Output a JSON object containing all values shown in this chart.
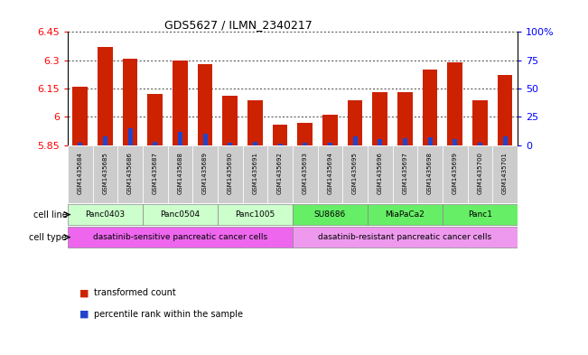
{
  "title": "GDS5627 / ILMN_2340217",
  "samples": [
    "GSM1435684",
    "GSM1435685",
    "GSM1435686",
    "GSM1435687",
    "GSM1435688",
    "GSM1435689",
    "GSM1435690",
    "GSM1435691",
    "GSM1435692",
    "GSM1435693",
    "GSM1435694",
    "GSM1435695",
    "GSM1435696",
    "GSM1435697",
    "GSM1435698",
    "GSM1435699",
    "GSM1435700",
    "GSM1435701"
  ],
  "transformed_count": [
    6.16,
    6.37,
    6.31,
    6.12,
    6.3,
    6.28,
    6.11,
    6.09,
    5.96,
    5.97,
    6.01,
    6.09,
    6.13,
    6.13,
    6.25,
    6.29,
    6.09,
    6.22
  ],
  "percentile_rank": [
    2,
    8,
    15,
    3,
    12,
    10,
    2,
    3,
    1,
    2,
    2,
    8,
    5,
    6,
    7,
    5,
    2,
    8
  ],
  "ymin": 5.85,
  "ymax": 6.45,
  "yticks": [
    5.85,
    6.0,
    6.15,
    6.3,
    6.45
  ],
  "ytick_labels": [
    "5.85",
    "6",
    "6.15",
    "6.3",
    "6.45"
  ],
  "right_yticks": [
    0,
    25,
    50,
    75,
    100
  ],
  "right_ytick_labels": [
    "0",
    "25",
    "50",
    "75",
    "100%"
  ],
  "bar_color": "#cc2200",
  "percentile_color": "#2244cc",
  "cell_lines": [
    {
      "label": "Panc0403",
      "start": 0,
      "end": 3,
      "color": "#ccffcc"
    },
    {
      "label": "Panc0504",
      "start": 3,
      "end": 6,
      "color": "#ccffcc"
    },
    {
      "label": "Panc1005",
      "start": 6,
      "end": 9,
      "color": "#ccffcc"
    },
    {
      "label": "SU8686",
      "start": 9,
      "end": 12,
      "color": "#66ee66"
    },
    {
      "label": "MiaPaCa2",
      "start": 12,
      "end": 15,
      "color": "#66ee66"
    },
    {
      "label": "Panc1",
      "start": 15,
      "end": 18,
      "color": "#66ee66"
    }
  ],
  "cell_types": [
    {
      "label": "dasatinib-sensitive pancreatic cancer cells",
      "start": 0,
      "end": 9,
      "color": "#ee66ee"
    },
    {
      "label": "dasatinib-resistant pancreatic cancer cells",
      "start": 9,
      "end": 18,
      "color": "#ee99ee"
    }
  ],
  "sample_bg_color": "#cccccc",
  "legend_items": [
    {
      "label": "transformed count",
      "color": "#cc2200"
    },
    {
      "label": "percentile rank within the sample",
      "color": "#2244cc"
    }
  ]
}
